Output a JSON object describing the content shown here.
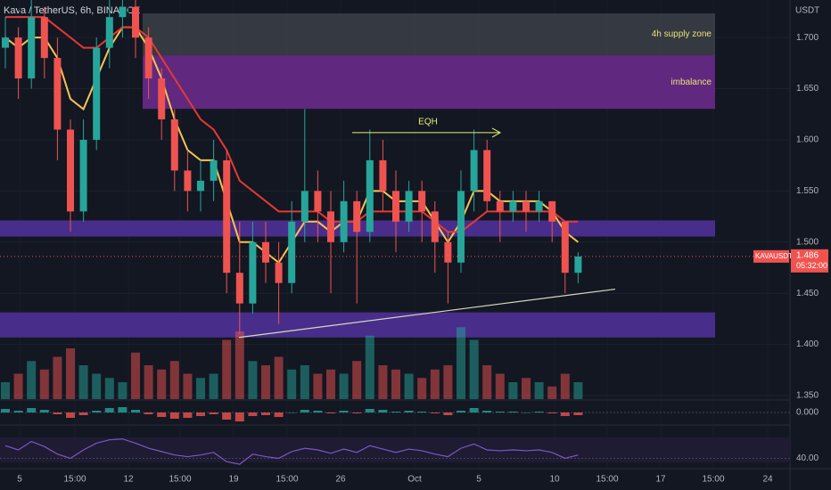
{
  "chart_data": {
    "type": "candlestick",
    "title": "Kava / TetherUS, 6h, BINANCE",
    "y_unit": "USDT",
    "symbol": "KAVAUSDT",
    "countdown": "05:32:00",
    "categories": [
      "5",
      "15:00",
      "12",
      "15:00",
      "19",
      "15:00",
      "26",
      "Oct",
      "5",
      "10",
      "15:00",
      "17",
      "15:00",
      "24"
    ],
    "ylim": [
      1.3465,
      1.7367
    ],
    "yticks": [
      {
        "value": 1.35,
        "label": "1.350"
      },
      {
        "value": 1.4,
        "label": "1.400"
      },
      {
        "value": 1.45,
        "label": "1.450"
      },
      {
        "value": 1.5,
        "label": "1.500"
      },
      {
        "value": 1.55,
        "label": "1.550"
      },
      {
        "value": 1.6,
        "label": "1.600"
      },
      {
        "value": 1.65,
        "label": "1.650"
      },
      {
        "value": 1.7,
        "label": "1.700"
      }
    ],
    "up_color": "#26a69a",
    "down_color": "#ef5350",
    "candles": {
      "open": [
        1.69,
        1.7,
        1.66,
        1.72,
        1.68,
        1.61,
        1.53,
        1.6,
        1.69,
        1.72,
        1.73,
        1.7,
        1.66,
        1.62,
        1.57,
        1.55,
        1.56,
        1.58,
        1.47,
        1.44,
        1.5,
        1.48,
        1.46,
        1.52,
        1.55,
        1.53,
        1.5,
        1.54,
        1.51,
        1.58,
        1.55,
        1.52,
        1.55,
        1.53,
        1.5,
        1.48,
        1.55,
        1.59,
        1.54,
        1.53,
        1.54,
        1.53,
        1.54,
        1.52,
        1.47
      ],
      "high": [
        1.72,
        1.71,
        1.74,
        1.73,
        1.7,
        1.62,
        1.62,
        1.7,
        1.74,
        1.74,
        1.74,
        1.71,
        1.67,
        1.63,
        1.59,
        1.58,
        1.6,
        1.59,
        1.52,
        1.52,
        1.52,
        1.5,
        1.54,
        1.63,
        1.57,
        1.55,
        1.56,
        1.55,
        1.61,
        1.6,
        1.57,
        1.56,
        1.56,
        1.54,
        1.51,
        1.57,
        1.61,
        1.6,
        1.55,
        1.55,
        1.55,
        1.55,
        1.54,
        1.52,
        1.49
      ],
      "low": [
        1.67,
        1.64,
        1.65,
        1.66,
        1.58,
        1.51,
        1.52,
        1.59,
        1.67,
        1.7,
        1.68,
        1.64,
        1.6,
        1.55,
        1.53,
        1.53,
        1.54,
        1.45,
        1.41,
        1.43,
        1.46,
        1.42,
        1.45,
        1.5,
        1.5,
        1.45,
        1.49,
        1.44,
        1.5,
        1.53,
        1.49,
        1.51,
        1.5,
        1.47,
        1.44,
        1.47,
        1.53,
        1.53,
        1.5,
        1.52,
        1.51,
        1.52,
        1.5,
        1.45,
        1.46
      ],
      "close": [
        1.7,
        1.66,
        1.72,
        1.68,
        1.61,
        1.53,
        1.6,
        1.69,
        1.72,
        1.73,
        1.7,
        1.66,
        1.62,
        1.57,
        1.55,
        1.56,
        1.58,
        1.47,
        1.44,
        1.5,
        1.48,
        1.46,
        1.52,
        1.55,
        1.53,
        1.5,
        1.54,
        1.51,
        1.58,
        1.55,
        1.52,
        1.55,
        1.53,
        1.5,
        1.48,
        1.55,
        1.59,
        1.54,
        1.53,
        1.54,
        1.53,
        1.54,
        1.52,
        1.47,
        1.486
      ]
    },
    "ribbon": [
      {
        "color": "#f6c453",
        "values": [
          1.7,
          1.69,
          1.7,
          1.7,
          1.68,
          1.64,
          1.63,
          1.66,
          1.69,
          1.71,
          1.71,
          1.69,
          1.66,
          1.62,
          1.59,
          1.58,
          1.58,
          1.54,
          1.5,
          1.5,
          1.49,
          1.48,
          1.5,
          1.52,
          1.52,
          1.51,
          1.52,
          1.52,
          1.55,
          1.55,
          1.54,
          1.54,
          1.54,
          1.52,
          1.5,
          1.52,
          1.55,
          1.55,
          1.54,
          1.54,
          1.54,
          1.54,
          1.53,
          1.51,
          1.5
        ]
      },
      {
        "color": "#e53935",
        "values": [
          1.72,
          1.72,
          1.72,
          1.72,
          1.71,
          1.7,
          1.69,
          1.69,
          1.7,
          1.71,
          1.71,
          1.7,
          1.68,
          1.66,
          1.64,
          1.62,
          1.61,
          1.59,
          1.56,
          1.55,
          1.54,
          1.53,
          1.53,
          1.53,
          1.53,
          1.52,
          1.52,
          1.52,
          1.53,
          1.53,
          1.53,
          1.53,
          1.53,
          1.52,
          1.51,
          1.51,
          1.52,
          1.53,
          1.53,
          1.53,
          1.53,
          1.53,
          1.53,
          1.52,
          1.52
        ]
      }
    ],
    "zones": [
      {
        "label": "4h supply zone",
        "top": 1.7236,
        "bottom": 1.6826,
        "color": "#3a3d45"
      },
      {
        "label": "imbalance",
        "top": 1.6826,
        "bottom": 1.6303,
        "color": "#6a2a8a"
      },
      {
        "top": 1.5212,
        "bottom": 1.5055,
        "color": "#4f3196"
      },
      {
        "top": 1.4313,
        "bottom": 1.4068,
        "color": "#4f3196"
      }
    ],
    "annotation": {
      "label": "EQH",
      "level": 1.607
    },
    "trendline": [
      1.4068,
      1.454
    ],
    "volume": [
      20,
      30,
      45,
      35,
      50,
      60,
      40,
      30,
      25,
      20,
      55,
      40,
      35,
      45,
      30,
      25,
      30,
      70,
      80,
      45,
      40,
      50,
      35,
      40,
      30,
      35,
      30,
      45,
      75,
      40,
      35,
      30,
      25,
      35,
      40,
      85,
      70,
      40,
      30,
      20,
      25,
      20,
      15,
      30,
      20
    ],
    "volume_max": 100,
    "macd": {
      "values": [
        0.004,
        0.002,
        0.005,
        0.003,
        -0.002,
        -0.006,
        -0.003,
        0.002,
        0.005,
        0.006,
        0.003,
        -0.002,
        -0.005,
        -0.007,
        -0.006,
        -0.004,
        -0.002,
        -0.008,
        -0.01,
        -0.004,
        -0.003,
        -0.005,
        0,
        0.003,
        0.002,
        -0.001,
        0.002,
        -0.001,
        0.004,
        0.003,
        0.001,
        0.002,
        0.001,
        -0.001,
        -0.003,
        0.002,
        0.005,
        0.002,
        0.001,
        0.001,
        0,
        0.001,
        -0.001,
        -0.004,
        -0.003
      ],
      "ylim": [
        -0.012,
        0.012
      ],
      "yticks": [
        {
          "value": 0,
          "label": "0.000"
        }
      ]
    },
    "rsi": {
      "values": [
        55,
        50,
        60,
        54,
        45,
        40,
        50,
        58,
        62,
        63,
        58,
        52,
        48,
        44,
        42,
        44,
        47,
        36,
        33,
        45,
        42,
        40,
        48,
        52,
        50,
        46,
        51,
        47,
        55,
        51,
        47,
        51,
        49,
        45,
        42,
        52,
        57,
        50,
        49,
        50,
        49,
        50,
        47,
        40,
        44
      ],
      "color": "#7e57c2",
      "ylim": [
        32,
        68
      ],
      "yticks": [
        {
          "value": 40,
          "label": "40.00"
        }
      ]
    }
  }
}
